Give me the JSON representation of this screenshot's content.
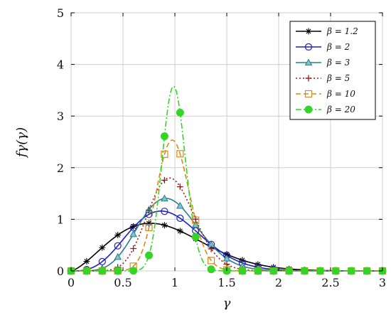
{
  "chart_data": {
    "type": "line",
    "xlabel": "γ",
    "ylabel": "fγ(γ)",
    "xlim": [
      0,
      3
    ],
    "ylim": [
      0,
      5
    ],
    "grid": true,
    "legend_position": "top-right",
    "x_ticks": [
      0,
      0.5,
      1,
      1.5,
      2,
      2.5,
      3
    ],
    "x_tick_labels": [
      "0",
      "0.5",
      "1",
      "1.5",
      "2",
      "2.5",
      "3"
    ],
    "y_ticks": [
      0,
      1,
      2,
      3,
      4,
      5
    ],
    "y_tick_labels": [
      "0",
      "1",
      "2",
      "3",
      "4",
      "5"
    ],
    "series": [
      {
        "name": "β = 1.2",
        "beta": 1.2,
        "color": "#000000",
        "dash": "",
        "marker": "star"
      },
      {
        "name": "β = 2",
        "beta": 2,
        "color": "#1f1fc8",
        "dash": "",
        "marker": "circle"
      },
      {
        "name": "β = 3",
        "beta": 3,
        "color": "#2c7e8a",
        "dash": "",
        "marker": "triangle"
      },
      {
        "name": "β = 5",
        "beta": 5,
        "color": "#a01818",
        "dash": "2,3",
        "marker": "plus"
      },
      {
        "name": "β = 10",
        "beta": 10,
        "color": "#d88a1c",
        "dash": "7,4",
        "marker": "square"
      },
      {
        "name": "β = 20",
        "beta": 20,
        "color": "#35d427",
        "dash": "8,3,2,3",
        "marker": "disk"
      }
    ]
  }
}
